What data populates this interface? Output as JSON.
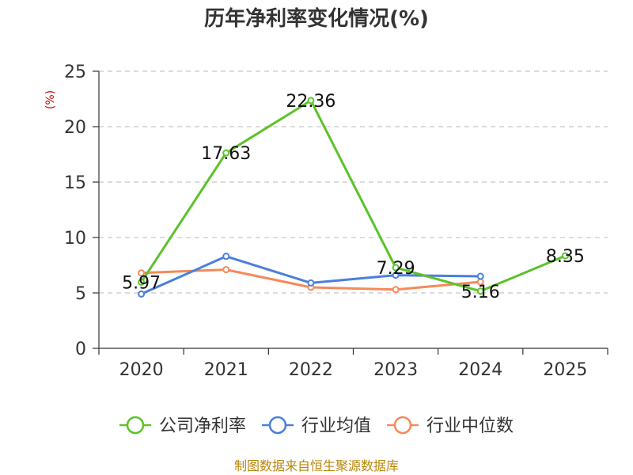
{
  "chart_data": {
    "type": "line",
    "title": "历年净利率变化情况(%)",
    "ylabel": "(%)",
    "xlabel": "",
    "categories": [
      "2020",
      "2021",
      "2022",
      "2023",
      "2024",
      "2025"
    ],
    "ylim": [
      0,
      25
    ],
    "yticks": [
      0,
      5,
      10,
      15,
      20,
      25
    ],
    "grid": "horizontal dashed",
    "legend_position": "bottom",
    "series": [
      {
        "name": "公司净利率",
        "color": "#5cc22a",
        "values": [
          5.97,
          17.63,
          22.36,
          7.29,
          5.16,
          8.35
        ],
        "labels": [
          "5.97",
          "17.63",
          "22.36",
          "7.29",
          "5.16",
          "8.35"
        ]
      },
      {
        "name": "行业均值",
        "color": "#4a80dc",
        "values": [
          4.9,
          8.3,
          5.9,
          6.6,
          6.5,
          null
        ]
      },
      {
        "name": "行业中位数",
        "color": "#f5895a",
        "values": [
          6.8,
          7.1,
          5.5,
          5.3,
          6.0,
          null
        ]
      }
    ]
  },
  "footer": {
    "source": "制图数据来自恒生聚源数据库"
  }
}
